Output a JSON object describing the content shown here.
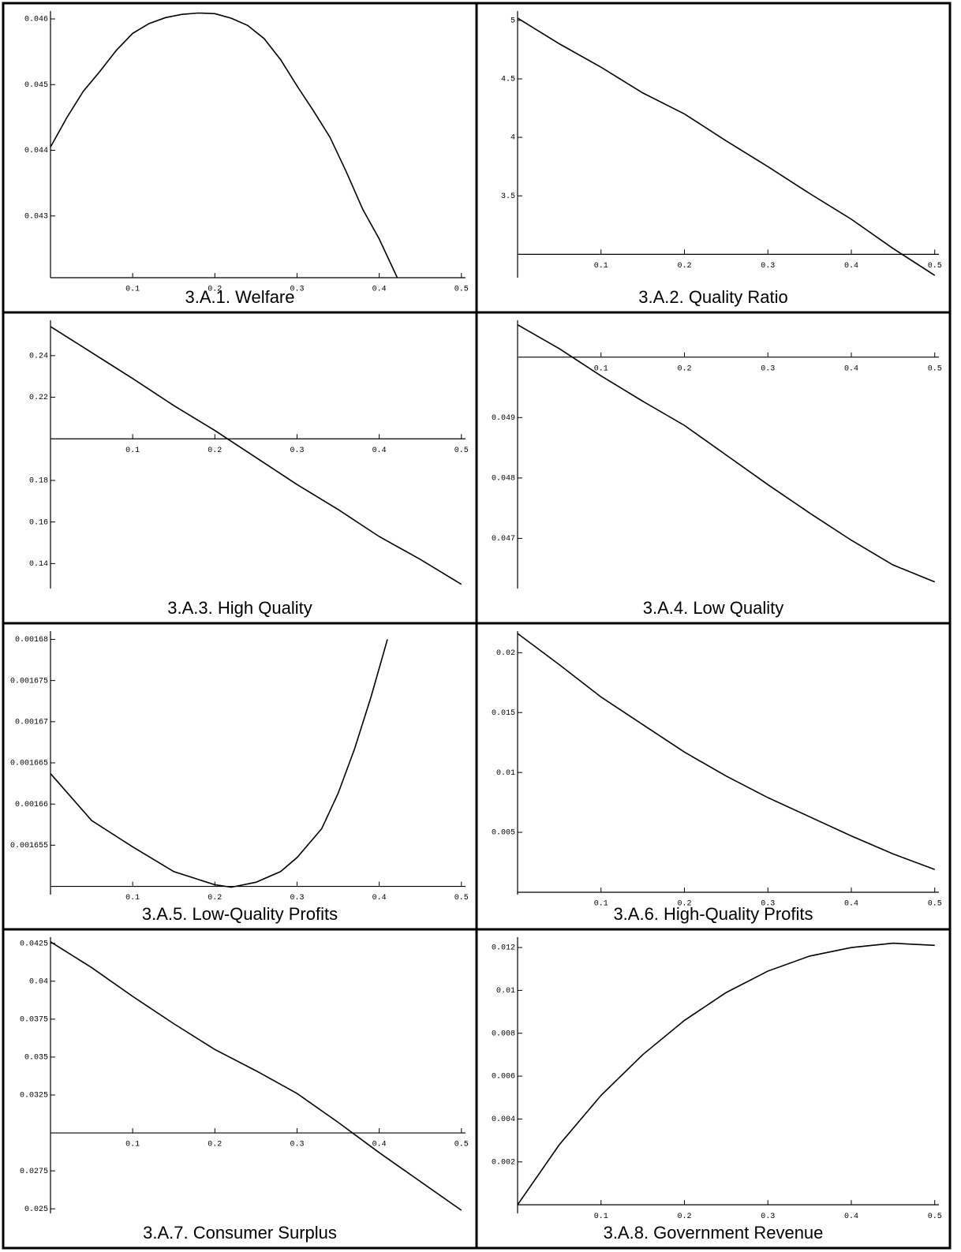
{
  "chart_data": [
    {
      "type": "line",
      "title": "3.A.1. Welfare",
      "x": [
        0,
        0.02,
        0.04,
        0.06,
        0.08,
        0.1,
        0.12,
        0.14,
        0.16,
        0.18,
        0.2,
        0.22,
        0.24,
        0.26,
        0.28,
        0.3,
        0.32,
        0.34,
        0.36,
        0.38,
        0.4,
        0.422
      ],
      "values": [
        0.04405,
        0.0445,
        0.0449,
        0.0452,
        0.04552,
        0.04578,
        0.04593,
        0.04602,
        0.04607,
        0.04609,
        0.04608,
        0.04601,
        0.0459,
        0.0457,
        0.04538,
        0.04498,
        0.0446,
        0.0442,
        0.04367,
        0.0431,
        0.04265,
        0.04206
      ],
      "xlim": [
        0,
        0.505
      ],
      "ylim": [
        0.04206,
        0.04612
      ],
      "xticks": [
        0.1,
        0.2,
        0.3,
        0.4,
        0.5
      ],
      "yticks": [
        0.043,
        0.044,
        0.045,
        0.046
      ],
      "origin": [
        0,
        0.04206
      ]
    },
    {
      "type": "line",
      "title": "3.A.2.  Quality Ratio",
      "x": [
        0,
        0.05,
        0.1,
        0.15,
        0.2,
        0.25,
        0.3,
        0.35,
        0.4,
        0.45,
        0.5
      ],
      "values": [
        5.02,
        4.8,
        4.6,
        4.38,
        4.2,
        3.97,
        3.75,
        3.52,
        3.3,
        3.05,
        2.82
      ],
      "xlim": [
        0,
        0.505
      ],
      "ylim": [
        2.8,
        5.08
      ],
      "xticks": [
        0.1,
        0.2,
        0.3,
        0.4,
        0.5
      ],
      "yticks": [
        3.5,
        4,
        4.5,
        5
      ],
      "origin": [
        0,
        3
      ]
    },
    {
      "type": "line",
      "title": "3.A.3.  High Quality",
      "x": [
        0,
        0.05,
        0.1,
        0.15,
        0.2,
        0.25,
        0.3,
        0.35,
        0.4,
        0.45,
        0.5
      ],
      "values": [
        0.254,
        0.2415,
        0.229,
        0.216,
        0.204,
        0.191,
        0.178,
        0.166,
        0.153,
        0.142,
        0.13
      ],
      "xlim": [
        0,
        0.505
      ],
      "ylim": [
        0.128,
        0.257
      ],
      "xticks": [
        0.1,
        0.2,
        0.3,
        0.4,
        0.5
      ],
      "yticks": [
        0.14,
        0.16,
        0.18,
        0.22,
        0.24
      ],
      "origin": [
        0,
        0.2
      ]
    },
    {
      "type": "line",
      "title": "3.A.4.  Low Quality",
      "x": [
        0,
        0.05,
        0.1,
        0.15,
        0.2,
        0.25,
        0.3,
        0.35,
        0.4,
        0.45,
        0.5
      ],
      "values": [
        0.050536,
        0.05014,
        0.04969,
        0.04927,
        0.04887,
        0.04838,
        0.04789,
        0.04742,
        0.04697,
        0.04656,
        0.04628
      ],
      "xlim": [
        0,
        0.505
      ],
      "ylim": [
        0.04617,
        0.05061
      ],
      "xticks": [
        0.1,
        0.2,
        0.3,
        0.4,
        0.5
      ],
      "yticks": [
        0.047,
        0.048,
        0.049
      ],
      "origin": [
        0,
        0.05
      ]
    },
    {
      "type": "line",
      "title": "3.A.5.  Low-Quality Profits",
      "x": [
        0,
        0.05,
        0.1,
        0.15,
        0.2,
        0.22,
        0.25,
        0.28,
        0.3,
        0.33,
        0.35,
        0.37,
        0.39,
        0.41
      ],
      "values": [
        0.0016637,
        0.001658,
        0.0016548,
        0.0016518,
        0.0016502,
        0.0016499,
        0.0016505,
        0.0016518,
        0.0016535,
        0.001657,
        0.0016613,
        0.0016667,
        0.001673,
        0.00168
      ],
      "xlim": [
        0,
        0.505
      ],
      "ylim": [
        0.001649,
        0.001681
      ],
      "xticks": [
        0.1,
        0.2,
        0.3,
        0.4,
        0.5
      ],
      "yticks": [
        0.001655,
        0.00166,
        0.001665,
        0.00167,
        0.001675,
        0.00168
      ],
      "origin": [
        0,
        0.00165
      ]
    },
    {
      "type": "line",
      "title": "3.A.6.  High-Quality Profits",
      "x": [
        0,
        0.05,
        0.1,
        0.15,
        0.2,
        0.25,
        0.3,
        0.35,
        0.4,
        0.45,
        0.5
      ],
      "values": [
        0.0216,
        0.019,
        0.0163,
        0.014,
        0.0117,
        0.0097,
        0.0079,
        0.0063,
        0.0047,
        0.0032,
        0.0019
      ],
      "xlim": [
        0,
        0.505
      ],
      "ylim": [
        -0.0002,
        0.0218
      ],
      "xticks": [
        0.1,
        0.2,
        0.3,
        0.4,
        0.5
      ],
      "yticks": [
        0.005,
        0.01,
        0.015,
        0.02
      ],
      "origin": [
        0,
        0
      ]
    },
    {
      "type": "line",
      "title": "3.A.7.  Consumer Surplus",
      "x": [
        0,
        0.05,
        0.1,
        0.15,
        0.2,
        0.25,
        0.3,
        0.35,
        0.4,
        0.45,
        0.5
      ],
      "values": [
        0.0426,
        0.0409,
        0.039,
        0.0372,
        0.0355,
        0.0341,
        0.0326,
        0.0307,
        0.0287,
        0.0268,
        0.0249
      ],
      "xlim": [
        0,
        0.505
      ],
      "ylim": [
        0.0247,
        0.0429
      ],
      "xticks": [
        0.1,
        0.2,
        0.3,
        0.4,
        0.5
      ],
      "yticks": [
        0.025,
        0.0275,
        0.0325,
        0.035,
        0.0375,
        0.04,
        0.0425
      ],
      "origin": [
        0,
        0.03
      ]
    },
    {
      "type": "line",
      "title": "3.A.8.  Government Revenue",
      "x": [
        0,
        0.05,
        0.1,
        0.15,
        0.2,
        0.25,
        0.3,
        0.35,
        0.4,
        0.45,
        0.5
      ],
      "values": [
        0,
        0.0028,
        0.0051,
        0.007,
        0.0086,
        0.0099,
        0.0109,
        0.0116,
        0.012,
        0.0122,
        0.0121
      ],
      "xlim": [
        0,
        0.505
      ],
      "ylim": [
        -0.0004,
        0.01248
      ],
      "xticks": [
        0.1,
        0.2,
        0.3,
        0.4,
        0.5
      ],
      "yticks": [
        0.002,
        0.004,
        0.006,
        0.008,
        0.01,
        0.012
      ],
      "origin": [
        0,
        0
      ]
    }
  ]
}
